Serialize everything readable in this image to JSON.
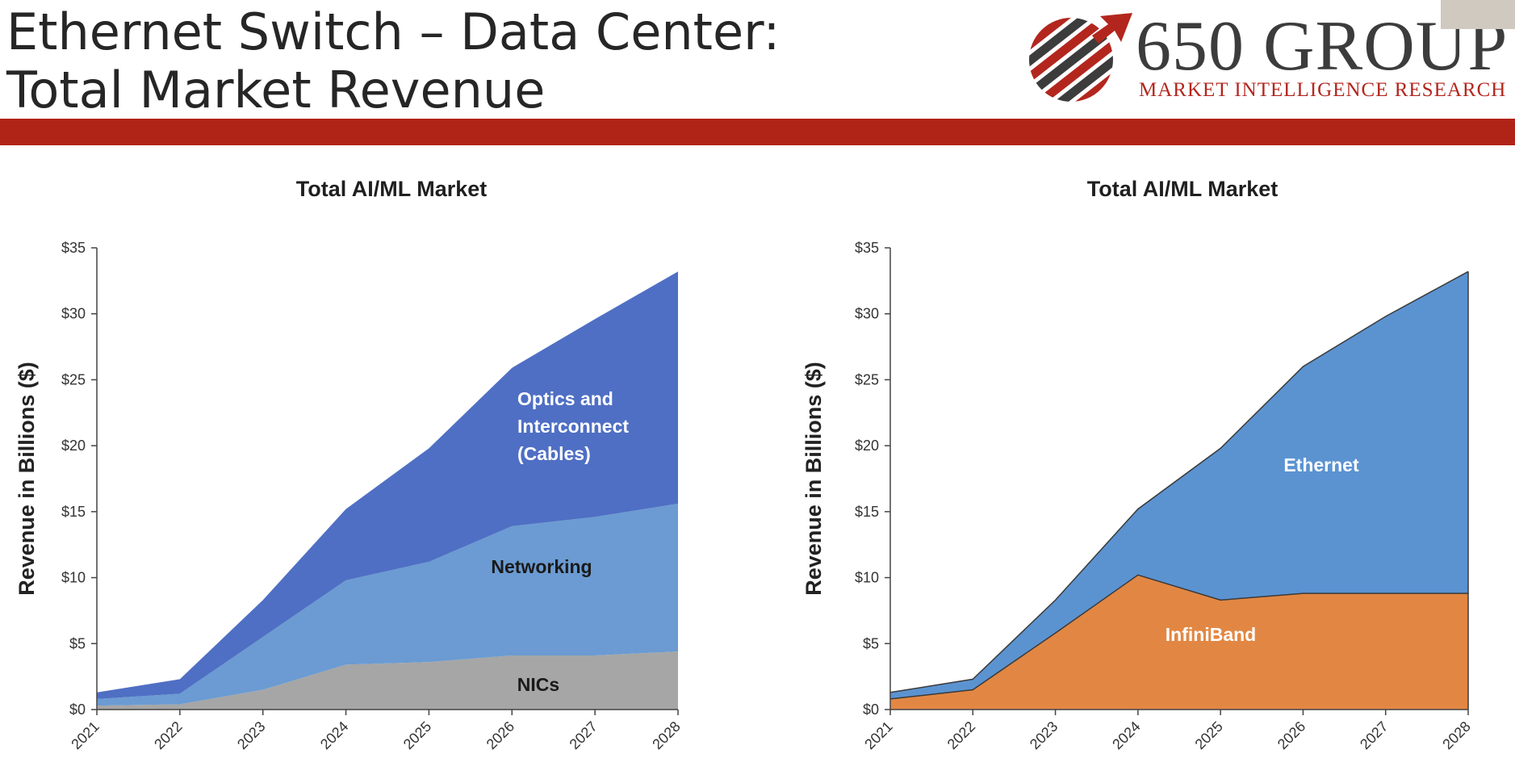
{
  "header": {
    "title_line1": "Ethernet Switch – Data Center:",
    "title_line2": "Total Market Revenue"
  },
  "logo": {
    "name": "650 GROUP",
    "tagline": "MARKET INTELLIGENCE RESEARCH",
    "icon": "striped-ball-arrow-logo-icon",
    "colors": {
      "red": "#b3261e",
      "gray": "#3c3c3c"
    }
  },
  "colors": {
    "band": "#b02418",
    "nics": "#a6a6a6",
    "networking": "#6b9bd2",
    "optics": "#4f6fc4",
    "ethernet": "#5b93d1",
    "infiniband": "#e28743"
  },
  "chart_data": [
    {
      "type": "area",
      "stacked": true,
      "title": "Total AI/ML Market",
      "ylabel": "Revenue in Billions ($)",
      "xlabel": "",
      "x": [
        "2021",
        "2022",
        "2023",
        "2024",
        "2025",
        "2026",
        "2027",
        "2028"
      ],
      "ylim": [
        0,
        35
      ],
      "yticks": [
        0,
        5,
        10,
        15,
        20,
        25,
        30,
        35
      ],
      "ytick_labels": [
        "$0",
        "$5",
        "$10",
        "$15",
        "$20",
        "$25",
        "$30",
        "$35"
      ],
      "grid": false,
      "series": [
        {
          "name": "NICs",
          "label_lines": [
            "NICs"
          ],
          "color": "#a6a6a6",
          "label_color": "#1a1a1a",
          "values": [
            0.3,
            0.4,
            1.5,
            3.4,
            3.6,
            4.1,
            4.1,
            4.4
          ]
        },
        {
          "name": "Networking",
          "label_lines": [
            "Networking"
          ],
          "color": "#6b9bd2",
          "label_color": "#1a1a1a",
          "values": [
            0.5,
            0.8,
            4.0,
            6.4,
            7.6,
            9.8,
            10.5,
            11.2
          ]
        },
        {
          "name": "Optics and Interconnect (Cables)",
          "label_lines": [
            "Optics and",
            "Interconnect",
            "(Cables)"
          ],
          "color": "#4f6fc4",
          "label_color": "#ffffff",
          "values": [
            0.5,
            1.1,
            2.8,
            5.4,
            8.6,
            12.0,
            15.0,
            17.6
          ]
        }
      ]
    },
    {
      "type": "area",
      "stacked": true,
      "title": "Total AI/ML Market",
      "ylabel": "Revenue  in Billions ($)",
      "xlabel": "",
      "x": [
        "2021",
        "2022",
        "2023",
        "2024",
        "2025",
        "2026",
        "2027",
        "2028"
      ],
      "ylim": [
        0,
        35
      ],
      "yticks": [
        0,
        5,
        10,
        15,
        20,
        25,
        30,
        35
      ],
      "ytick_labels": [
        "$0",
        "$5",
        "$10",
        "$15",
        "$20",
        "$25",
        "$30",
        "$35"
      ],
      "grid": false,
      "series": [
        {
          "name": "InfiniBand",
          "label_lines": [
            "InfiniBand"
          ],
          "color": "#e28743",
          "label_color": "#ffffff",
          "values": [
            0.8,
            1.5,
            5.8,
            10.2,
            8.3,
            8.8,
            8.8,
            8.8
          ]
        },
        {
          "name": "Ethernet",
          "label_lines": [
            "Ethernet"
          ],
          "color": "#5b93d1",
          "label_color": "#ffffff",
          "values": [
            0.5,
            0.8,
            2.5,
            5.0,
            11.5,
            17.2,
            21.0,
            24.4
          ]
        }
      ]
    }
  ]
}
